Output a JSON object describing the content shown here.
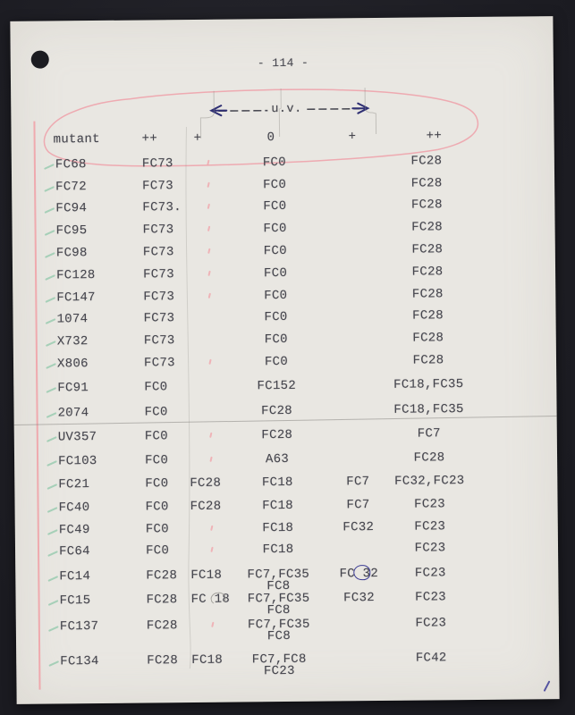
{
  "document": {
    "page_number": "- 114 -",
    "uv_label": "u.v."
  },
  "table": {
    "headers": [
      "mutant",
      "++",
      "+",
      "0",
      "+",
      "++"
    ],
    "rows": [
      {
        "mutant": "FC68",
        "cells": [
          "FC73",
          "",
          "FC0",
          "",
          "FC28"
        ],
        "line2": "",
        "check": true,
        "pink_tick": true,
        "annot": ""
      },
      {
        "mutant": "FC72",
        "cells": [
          "FC73",
          "",
          "FC0",
          "",
          "FC28"
        ],
        "line2": "",
        "check": true,
        "pink_tick": true,
        "annot": ""
      },
      {
        "mutant": "FC94",
        "cells": [
          "FC73.",
          "",
          "FC0",
          "",
          "FC28"
        ],
        "line2": "",
        "check": true,
        "pink_tick": true,
        "annot": ""
      },
      {
        "mutant": "FC95",
        "cells": [
          "FC73",
          "",
          "FC0",
          "",
          "FC28"
        ],
        "line2": "",
        "check": true,
        "pink_tick": true,
        "annot": ""
      },
      {
        "mutant": "FC98",
        "cells": [
          "FC73",
          "",
          "FC0",
          "",
          "FC28"
        ],
        "line2": "",
        "check": true,
        "pink_tick": true,
        "annot": ""
      },
      {
        "mutant": "FC128",
        "cells": [
          "FC73",
          "",
          "FC0",
          "",
          "FC28"
        ],
        "line2": "",
        "check": true,
        "pink_tick": true,
        "annot": ""
      },
      {
        "mutant": "FC147",
        "cells": [
          "FC73",
          "",
          "FC0",
          "",
          "FC28"
        ],
        "line2": "",
        "check": true,
        "pink_tick": true,
        "annot": ""
      },
      {
        "mutant": "1074",
        "cells": [
          "FC73",
          "",
          "FC0",
          "",
          "FC28"
        ],
        "line2": "",
        "check": true,
        "pink_tick": false,
        "annot": ""
      },
      {
        "mutant": "X732",
        "cells": [
          "FC73",
          "",
          "FC0",
          "",
          "FC28"
        ],
        "line2": "",
        "check": true,
        "pink_tick": false,
        "annot": ""
      },
      {
        "mutant": "X806",
        "cells": [
          "FC73",
          "",
          "FC0",
          "",
          "FC28"
        ],
        "line2": "",
        "check": true,
        "pink_tick": true,
        "annot": ""
      },
      {
        "mutant": "FC91",
        "cells": [
          "FC0",
          "",
          "FC152",
          "",
          "FC18,FC35"
        ],
        "line2": "",
        "check": true,
        "pink_tick": false,
        "annot": ""
      },
      {
        "mutant": "2074",
        "cells": [
          "FC0",
          "",
          "FC28",
          "",
          "FC18,FC35"
        ],
        "line2": "",
        "check": true,
        "pink_tick": false,
        "annot": ""
      },
      {
        "mutant": "UV357",
        "cells": [
          "FC0",
          "",
          "FC28",
          "",
          "FC7"
        ],
        "line2": "",
        "check": true,
        "pink_tick": true,
        "annot": ""
      },
      {
        "mutant": "FC103",
        "cells": [
          "FC0",
          "",
          "A63",
          "",
          "FC28"
        ],
        "line2": "",
        "check": true,
        "pink_tick": true,
        "annot": ""
      },
      {
        "mutant": "FC21",
        "cells": [
          "FC0",
          "FC28",
          "FC18",
          "FC7",
          "FC32,FC23"
        ],
        "line2": "",
        "check": true,
        "pink_tick": false,
        "annot": ""
      },
      {
        "mutant": "FC40",
        "cells": [
          "FC0",
          "FC28",
          "FC18",
          "FC7",
          "FC23"
        ],
        "line2": "",
        "check": true,
        "pink_tick": false,
        "annot": ""
      },
      {
        "mutant": "FC49",
        "cells": [
          "FC0",
          "",
          "FC18",
          "FC32",
          "FC23"
        ],
        "line2": "",
        "check": true,
        "pink_tick": true,
        "annot": ""
      },
      {
        "mutant": "FC64",
        "cells": [
          "FC0",
          "",
          "FC18",
          "",
          "FC23"
        ],
        "line2": "",
        "check": true,
        "pink_tick": true,
        "annot": ""
      },
      {
        "mutant": "FC14",
        "cells": [
          "FC28",
          "FC18",
          "FC7,FC35",
          "FC 32",
          "FC23"
        ],
        "line2": "FC8",
        "check": true,
        "pink_tick": false,
        "annot": "blue-circle"
      },
      {
        "mutant": "FC15",
        "cells": [
          "FC28",
          "FC 18",
          "FC7,FC35",
          "FC32",
          "FC23"
        ],
        "line2": "FC8",
        "check": true,
        "pink_tick": false,
        "annot": "pencil-circle"
      },
      {
        "mutant": "FC137",
        "cells": [
          "FC28",
          "",
          "FC7,FC35",
          "",
          "FC23"
        ],
        "line2": "FC8",
        "check": true,
        "pink_tick": true,
        "annot": ""
      },
      {
        "mutant": "FC134",
        "cells": [
          "FC28",
          "FC18",
          "FC7,FC8",
          "",
          "FC42"
        ],
        "line2": "FC23",
        "check": true,
        "pink_tick": false,
        "annot": ""
      }
    ]
  },
  "colors": {
    "background": "#1e1e24",
    "paper": "#e9e7e2",
    "typewriter_ink": "#45454d",
    "navy_arrow_ink": "#2f2f73",
    "pink_annotation": "#f0a1a8",
    "green_checkmark": "#9acbb0",
    "blue_pen": "#3c3c96",
    "pencil": "#918f8a"
  }
}
